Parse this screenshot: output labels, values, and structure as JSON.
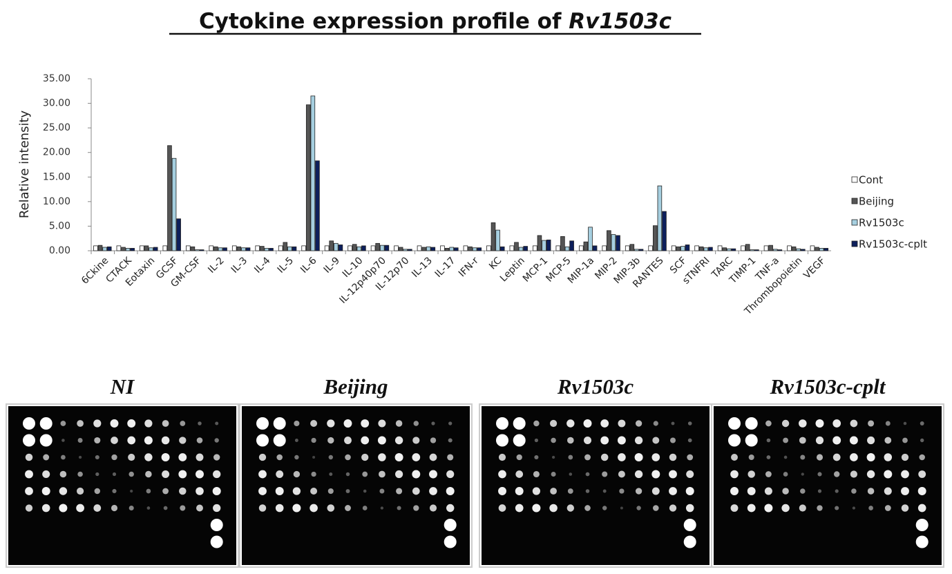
{
  "chart_data": {
    "type": "bar",
    "title": "Cytokine expression profile of",
    "title_emphasis": "Rv1503c",
    "y_label": "Relative intensity",
    "categories": [
      "6Ckine",
      "CTACK",
      "Eotaxin",
      "GCSF",
      "GM-CSF",
      "IL-2",
      "IL-3",
      "IL-4",
      "IL-5",
      "IL-6",
      "IL-9",
      "IL-10",
      "IL-12p40p70",
      "IL-12p70",
      "IL-13",
      "IL-17",
      "IFN-r",
      "KC",
      "Leptin",
      "MCP-1",
      "MCP-5",
      "MIP-1a",
      "MIP-2",
      "MIP-3b",
      "RANTES",
      "SCF",
      "sTNFRI",
      "TARC",
      "TIMP-1",
      "TNF-a",
      "Thrombopoietin",
      "VEGF"
    ],
    "series": [
      {
        "name": "Cont",
        "color": "#ffffff",
        "values": [
          1,
          1,
          1,
          1,
          1,
          1,
          1,
          1,
          1,
          1,
          1,
          1,
          1,
          1,
          1,
          1,
          1,
          1,
          1,
          1,
          1,
          1,
          1,
          1,
          1,
          1,
          1,
          1,
          1,
          1,
          1,
          1
        ]
      },
      {
        "name": "Beijing",
        "color": "#555555",
        "values": [
          1.1,
          0.7,
          1,
          21.4,
          0.8,
          0.8,
          0.8,
          0.9,
          1.7,
          29.7,
          2,
          1.3,
          1.5,
          0.7,
          0.7,
          0.5,
          0.8,
          5.7,
          1.7,
          3.1,
          2.9,
          1.8,
          4.1,
          1.3,
          5.1,
          0.8,
          0.8,
          0.6,
          1.3,
          1.1,
          0.8,
          0.7
        ]
      },
      {
        "name": "Rv1503c",
        "color": "#a6cfe0",
        "values": [
          0.7,
          0.5,
          0.6,
          18.8,
          0.2,
          0.6,
          0.6,
          0.5,
          0.8,
          31.5,
          1.5,
          0.8,
          1.1,
          0.3,
          0.8,
          0.7,
          0.6,
          4.2,
          0.7,
          2.1,
          0.8,
          4.8,
          3.3,
          0.3,
          13.2,
          0.9,
          0.6,
          0.4,
          0.2,
          0.3,
          0.4,
          0.5
        ]
      },
      {
        "name": "Rv1503c-cplt",
        "color": "#0d1f5c",
        "values": [
          0.8,
          0.5,
          0.7,
          6.5,
          0.2,
          0.6,
          0.6,
          0.5,
          0.8,
          18.3,
          1.2,
          1,
          1.1,
          0.3,
          0.7,
          0.6,
          0.6,
          0.8,
          0.9,
          2.2,
          2,
          1,
          3.1,
          0.3,
          8,
          1.2,
          0.7,
          0.4,
          0.2,
          0.2,
          0.3,
          0.5
        ]
      }
    ],
    "ylim": [
      0,
      35
    ],
    "yticks": [
      {
        "value": 0,
        "label": "0.00"
      },
      {
        "value": 5,
        "label": "5.00"
      },
      {
        "value": 10,
        "label": "10.00"
      },
      {
        "value": 15,
        "label": "15.00"
      },
      {
        "value": 20,
        "label": "20.00"
      },
      {
        "value": 25,
        "label": "25.00"
      },
      {
        "value": 30,
        "label": "30.00"
      },
      {
        "value": 35,
        "label": "35.00"
      }
    ],
    "legend": "right"
  },
  "panels": [
    {
      "label": "NI"
    },
    {
      "label": "Beijing"
    },
    {
      "label": "Rv1503c"
    },
    {
      "label": "Rv1503c-cplt"
    }
  ]
}
